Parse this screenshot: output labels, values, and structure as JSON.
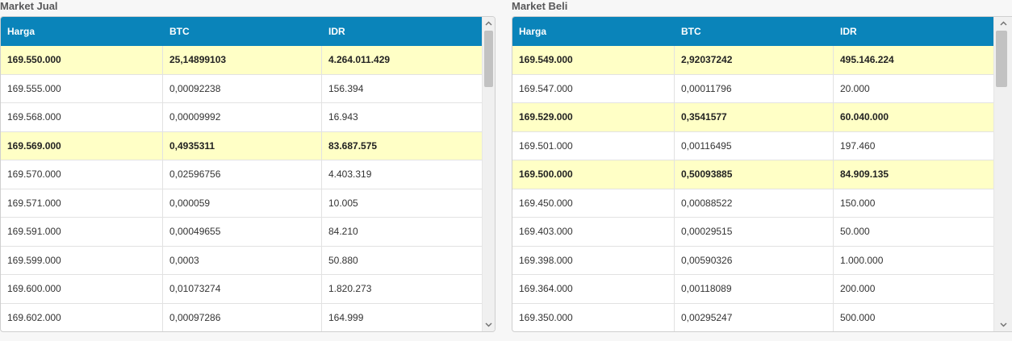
{
  "market_jual": {
    "title": "Market Jual",
    "columns": [
      "Harga",
      "BTC",
      "IDR"
    ],
    "rows": [
      {
        "harga": "169.550.000",
        "btc": "25,14899103",
        "idr": "4.264.011.429",
        "highlight": true
      },
      {
        "harga": "169.555.000",
        "btc": "0,00092238",
        "idr": "156.394",
        "highlight": false
      },
      {
        "harga": "169.568.000",
        "btc": "0,00009992",
        "idr": "16.943",
        "highlight": false
      },
      {
        "harga": "169.569.000",
        "btc": "0,4935311",
        "idr": "83.687.575",
        "highlight": true
      },
      {
        "harga": "169.570.000",
        "btc": "0,02596756",
        "idr": "4.403.319",
        "highlight": false
      },
      {
        "harga": "169.571.000",
        "btc": "0,000059",
        "idr": "10.005",
        "highlight": false
      },
      {
        "harga": "169.591.000",
        "btc": "0,00049655",
        "idr": "84.210",
        "highlight": false
      },
      {
        "harga": "169.599.000",
        "btc": "0,0003",
        "idr": "50.880",
        "highlight": false
      },
      {
        "harga": "169.600.000",
        "btc": "0,01073274",
        "idr": "1.820.273",
        "highlight": false
      },
      {
        "harga": "169.602.000",
        "btc": "0,00097286",
        "idr": "164.999",
        "highlight": false
      }
    ]
  },
  "market_beli": {
    "title": "Market Beli",
    "columns": [
      "Harga",
      "BTC",
      "IDR"
    ],
    "rows": [
      {
        "harga": "169.549.000",
        "btc": "2,92037242",
        "idr": "495.146.224",
        "highlight": true
      },
      {
        "harga": "169.547.000",
        "btc": "0,00011796",
        "idr": "20.000",
        "highlight": false
      },
      {
        "harga": "169.529.000",
        "btc": "0,3541577",
        "idr": "60.040.000",
        "highlight": true
      },
      {
        "harga": "169.501.000",
        "btc": "0,00116495",
        "idr": "197.460",
        "highlight": false
      },
      {
        "harga": "169.500.000",
        "btc": "0,50093885",
        "idr": "84.909.135",
        "highlight": true
      },
      {
        "harga": "169.450.000",
        "btc": "0,00088522",
        "idr": "150.000",
        "highlight": false
      },
      {
        "harga": "169.403.000",
        "btc": "0,00029515",
        "idr": "50.000",
        "highlight": false
      },
      {
        "harga": "169.398.000",
        "btc": "0,00590326",
        "idr": "1.000.000",
        "highlight": false
      },
      {
        "harga": "169.364.000",
        "btc": "0,00118089",
        "idr": "200.000",
        "highlight": false
      },
      {
        "harga": "169.350.000",
        "btc": "0,00295247",
        "idr": "500.000",
        "highlight": false
      }
    ]
  },
  "colors": {
    "header_bg": "#0a84ba",
    "highlight_row": "#ffffc6",
    "panel_title": "#58585a"
  },
  "icons": {
    "scroll_up": "chevron-up-icon",
    "scroll_down": "chevron-down-icon"
  }
}
